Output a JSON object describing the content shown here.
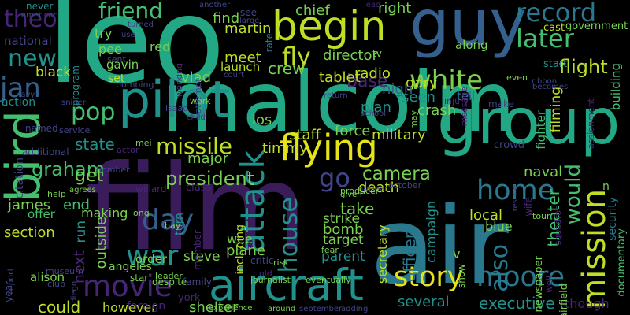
{
  "palette": {
    "background": "#000000",
    "purple": "#482677",
    "darkpurple": "#3b1c5b",
    "indigo": "#414487",
    "blue": "#355f8d",
    "teal": "#2a788e",
    "cyan": "#21918c",
    "green": "#22a884",
    "lime": "#44bf70",
    "ygreen": "#7ad151",
    "yellow": "#bddf26",
    "brightyellow": "#e4e419"
  },
  "words": [
    {
      "text": "leo",
      "color": "green"
    },
    {
      "text": "malcolm",
      "color": "green"
    },
    {
      "text": "film",
      "color": "darkpurple"
    },
    {
      "text": "air",
      "color": "teal"
    },
    {
      "text": "guy",
      "color": "blue"
    },
    {
      "text": "group",
      "color": "green"
    },
    {
      "text": "bird",
      "color": "lime"
    },
    {
      "text": "pilot",
      "color": "cyan"
    },
    {
      "text": "begin",
      "color": "yellow"
    },
    {
      "text": "aircraft",
      "color": "cyan"
    },
    {
      "text": "flying",
      "color": "brightyellow"
    },
    {
      "text": "mission",
      "color": "yellow"
    },
    {
      "text": "attack",
      "color": "cyan"
    },
    {
      "text": "movie",
      "color": "purple"
    },
    {
      "text": "house",
      "color": "cyan"
    },
    {
      "text": "home",
      "color": "teal"
    },
    {
      "text": "story",
      "color": "brightyellow"
    },
    {
      "text": "moore",
      "color": "teal"
    },
    {
      "text": "white",
      "color": "ygreen"
    },
    {
      "text": "record",
      "color": "teal"
    },
    {
      "text": "friend",
      "color": "lime"
    },
    {
      "text": "theo",
      "color": "purple"
    },
    {
      "text": "new",
      "color": "cyan"
    },
    {
      "text": "later",
      "color": "lime"
    },
    {
      "text": "pop",
      "color": "lime"
    },
    {
      "text": "day",
      "color": "blue"
    },
    {
      "text": "war",
      "color": "cyan"
    },
    {
      "text": "jan",
      "color": "blue"
    },
    {
      "text": "missile",
      "color": "yellow"
    },
    {
      "text": "graham",
      "color": "lime"
    },
    {
      "text": "also",
      "color": "teal"
    },
    {
      "text": "would",
      "color": "lime"
    },
    {
      "text": "go",
      "color": "indigo"
    },
    {
      "text": "fly",
      "color": "yellow"
    },
    {
      "text": "flight",
      "color": "yellow"
    },
    {
      "text": "crew",
      "color": "ygreen"
    },
    {
      "text": "base",
      "color": "purple"
    },
    {
      "text": "president",
      "color": "ygreen"
    },
    {
      "text": "executive",
      "color": "cyan"
    },
    {
      "text": "camera",
      "color": "ygreen"
    },
    {
      "text": "naval",
      "color": "ygreen"
    },
    {
      "text": "military",
      "color": "yellow"
    },
    {
      "text": "force",
      "color": "ygreen"
    },
    {
      "text": "staff",
      "color": "yellow"
    },
    {
      "text": "state",
      "color": "cyan"
    },
    {
      "text": "get",
      "color": "ygreen"
    },
    {
      "text": "major",
      "color": "ygreen"
    },
    {
      "text": "timmy",
      "color": "yellow"
    },
    {
      "text": "gary",
      "color": "yellow"
    },
    {
      "text": "crash",
      "color": "ygreen"
    },
    {
      "text": "seen",
      "color": "cyan"
    },
    {
      "text": "plan",
      "color": "cyan"
    },
    {
      "text": "high",
      "color": "blue"
    },
    {
      "text": "radio",
      "color": "yellow"
    },
    {
      "text": "tablet",
      "color": "yellow"
    },
    {
      "text": "director",
      "color": "ygreen"
    },
    {
      "text": "chief",
      "color": "ygreen"
    },
    {
      "text": "right",
      "color": "ygreen"
    },
    {
      "text": "vlad",
      "color": "ygreen"
    },
    {
      "text": "martin",
      "color": "yellow"
    },
    {
      "text": "find",
      "color": "ygreen"
    },
    {
      "text": "meet",
      "color": "yellow"
    },
    {
      "text": "launch",
      "color": "yellow"
    },
    {
      "text": "red",
      "color": "ygreen"
    },
    {
      "text": "pee",
      "color": "ygreen"
    },
    {
      "text": "gavin",
      "color": "ygreen"
    },
    {
      "text": "set",
      "color": "yellow"
    },
    {
      "text": "black",
      "color": "yellow"
    },
    {
      "text": "try",
      "color": "ygreen"
    },
    {
      "text": "national",
      "color": "indigo"
    },
    {
      "text": "end",
      "color": "lime"
    },
    {
      "text": "james",
      "color": "ygreen"
    },
    {
      "text": "offer",
      "color": "lime"
    },
    {
      "text": "section",
      "color": "yellow"
    },
    {
      "text": "making",
      "color": "ygreen"
    },
    {
      "text": "run",
      "color": "cyan"
    },
    {
      "text": "next",
      "color": "purple"
    },
    {
      "text": "outside",
      "color": "ygreen"
    },
    {
      "text": "could",
      "color": "yellow"
    },
    {
      "text": "however",
      "color": "yellow"
    },
    {
      "text": "shelter",
      "color": "ygreen"
    },
    {
      "text": "angeles",
      "color": "ygreen"
    },
    {
      "text": "steve",
      "color": "ygreen"
    },
    {
      "text": "plane",
      "color": "ygreen"
    },
    {
      "text": "wee",
      "color": "ygreen"
    },
    {
      "text": "bomb",
      "color": "ygreen"
    },
    {
      "text": "target",
      "color": "ygreen"
    },
    {
      "text": "take",
      "color": "ygreen"
    },
    {
      "text": "strike",
      "color": "ygreen"
    },
    {
      "text": "death",
      "color": "yellow"
    },
    {
      "text": "campaign",
      "color": "cyan"
    },
    {
      "text": "officer",
      "color": "teal"
    },
    {
      "text": "local",
      "color": "yellow"
    },
    {
      "text": "blue",
      "color": "ygreen"
    },
    {
      "text": "several",
      "color": "cyan"
    },
    {
      "text": "parent",
      "color": "cyan"
    },
    {
      "text": "secretary",
      "color": "yellow"
    },
    {
      "text": "theater",
      "color": "lime"
    },
    {
      "text": "filming",
      "color": "yellow"
    },
    {
      "text": "building",
      "color": "lime"
    },
    {
      "text": "government",
      "color": "ygreen"
    },
    {
      "text": "cast",
      "color": "yellow"
    },
    {
      "text": "start",
      "color": "cyan"
    },
    {
      "text": "security",
      "color": "teal"
    },
    {
      "text": "documentary",
      "color": "lime"
    },
    {
      "text": "newspaper",
      "color": "ygreen"
    },
    {
      "text": "though",
      "color": "purple"
    },
    {
      "text": "including",
      "color": "yellow"
    },
    {
      "text": "order",
      "color": "ygreen"
    },
    {
      "text": "turn",
      "color": "cyan"
    },
    {
      "text": "los",
      "color": "ygreen"
    },
    {
      "text": "fighter",
      "color": "lime"
    },
    {
      "text": "airfield",
      "color": "ygreen"
    },
    {
      "text": "citation",
      "color": "indigo"
    },
    {
      "text": "alison",
      "color": "ygreen"
    },
    {
      "text": "action",
      "color": "cyan"
    },
    {
      "text": "program",
      "color": "cyan"
    },
    {
      "text": "american",
      "color": "indigo"
    },
    {
      "text": "never",
      "color": "cyan"
    },
    {
      "text": "see",
      "color": "indigo"
    },
    {
      "text": "rate",
      "color": "teal"
    },
    {
      "text": "along",
      "color": "ygreen"
    },
    {
      "text": "tv",
      "color": "ygreen"
    },
    {
      "text": "tell",
      "color": "teal"
    },
    {
      "text": "attempt",
      "color": "indigo"
    },
    {
      "text": "bombing",
      "color": "indigo"
    },
    {
      "text": "bomber",
      "color": "indigo"
    },
    {
      "text": "service",
      "color": "indigo"
    },
    {
      "text": "additional",
      "color": "indigo"
    },
    {
      "text": "named",
      "color": "indigo"
    },
    {
      "text": "work",
      "color": "ygreen"
    },
    {
      "text": "working",
      "color": "purple"
    },
    {
      "text": "isaac",
      "color": "indigo"
    },
    {
      "text": "class",
      "color": "purple"
    },
    {
      "text": "willard",
      "color": "purple"
    },
    {
      "text": "member",
      "color": "purple"
    },
    {
      "text": "despite",
      "color": "ygreen"
    },
    {
      "text": "leader",
      "color": "ygreen"
    },
    {
      "text": "family",
      "color": "indigo"
    },
    {
      "text": "york",
      "color": "purple"
    },
    {
      "text": "foreign",
      "color": "purple"
    },
    {
      "text": "star",
      "color": "ygreen"
    },
    {
      "text": "experience",
      "color": "ygreen"
    },
    {
      "text": "journalist",
      "color": "ygreen"
    },
    {
      "text": "eventually",
      "color": "ygreen"
    },
    {
      "text": "around",
      "color": "ygreen"
    },
    {
      "text": "september",
      "color": "indigo"
    },
    {
      "text": "adding",
      "color": "indigo"
    },
    {
      "text": "producer",
      "color": "ygreen"
    },
    {
      "text": "nuclear",
      "color": "indigo"
    },
    {
      "text": "given",
      "color": "ygreen"
    },
    {
      "text": "october",
      "color": "indigo"
    },
    {
      "text": "fear",
      "color": "ygreen"
    },
    {
      "text": "risk",
      "color": "ygreen"
    },
    {
      "text": "critic",
      "color": "indigo"
    },
    {
      "text": "old",
      "color": "purple"
    },
    {
      "text": "show",
      "color": "ygreen"
    },
    {
      "text": "well",
      "color": "purple"
    },
    {
      "text": "tour",
      "color": "ygreen"
    },
    {
      "text": "squadron",
      "color": "purple"
    },
    {
      "text": "wife",
      "color": "purple"
    },
    {
      "text": "crowd",
      "color": "indigo"
    },
    {
      "text": "make",
      "color": "indigo"
    },
    {
      "text": "even",
      "color": "ygreen"
    },
    {
      "text": "becomes",
      "color": "indigo"
    },
    {
      "text": "ribbon",
      "color": "indigo"
    },
    {
      "text": "lead",
      "color": "purple"
    },
    {
      "text": "another",
      "color": "indigo"
    },
    {
      "text": "turned",
      "color": "indigo"
    },
    {
      "text": "use",
      "color": "indigo"
    },
    {
      "text": "sent",
      "color": "indigo"
    },
    {
      "text": "navy",
      "color": "indigo"
    },
    {
      "text": "mei",
      "color": "ygreen"
    },
    {
      "text": "actor",
      "color": "purple"
    },
    {
      "text": "child",
      "color": "purple"
    },
    {
      "text": "sniper",
      "color": "indigo"
    },
    {
      "text": "agrees",
      "color": "ygreen"
    },
    {
      "text": "help",
      "color": "ygreen"
    },
    {
      "text": "long",
      "color": "ygreen"
    },
    {
      "text": "bay",
      "color": "ygreen"
    },
    {
      "text": "museum",
      "color": "indigo"
    },
    {
      "text": "club",
      "color": "indigo"
    },
    {
      "text": "diego",
      "color": "indigo"
    },
    {
      "text": "year",
      "color": "indigo"
    },
    {
      "text": "report",
      "color": "indigo"
    },
    {
      "text": "court",
      "color": "indigo"
    },
    {
      "text": "return",
      "color": "indigo"
    },
    {
      "text": "school",
      "color": "indigo"
    },
    {
      "text": "injury",
      "color": "purple"
    },
    {
      "text": "message",
      "color": "purple"
    },
    {
      "text": "assignment",
      "color": "purple"
    },
    {
      "text": "rescue",
      "color": "indigo"
    },
    {
      "text": "may",
      "color": "ygreen"
    },
    {
      "text": "large",
      "color": "indigo"
    },
    {
      "text": "v",
      "color": "ygreen"
    },
    {
      "text": "n",
      "color": "ygreen"
    }
  ]
}
